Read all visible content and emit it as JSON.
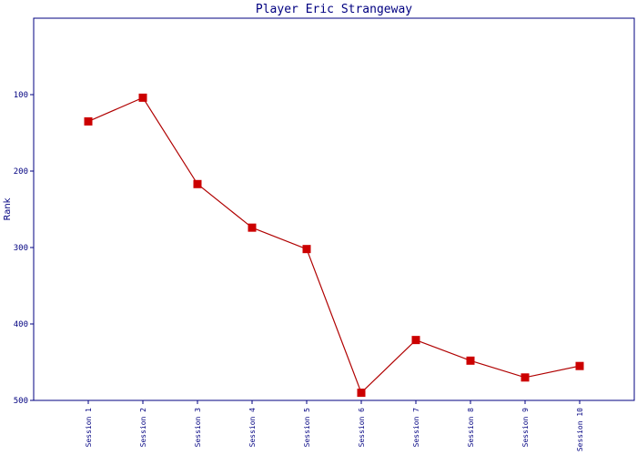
{
  "chart_data": {
    "type": "line",
    "title": "Player Eric Strangeway",
    "y_label": "Rank",
    "categories": [
      "Session 1",
      "Session 2",
      "Session 3",
      "Session 4",
      "Session 5",
      "Session 6",
      "Session 7",
      "Session 8",
      "Session 9",
      "Session 10"
    ],
    "series": [
      {
        "name": "Rank",
        "color": "#b00000",
        "marker_color": "#cc0000",
        "values": [
          135,
          104,
          217,
          274,
          302,
          490,
          421,
          448,
          470,
          455
        ]
      }
    ],
    "ylim": [
      0,
      500
    ],
    "yticks": [
      100,
      200,
      300,
      400,
      500
    ],
    "y_inverted": true,
    "axis_color": "#000080"
  }
}
